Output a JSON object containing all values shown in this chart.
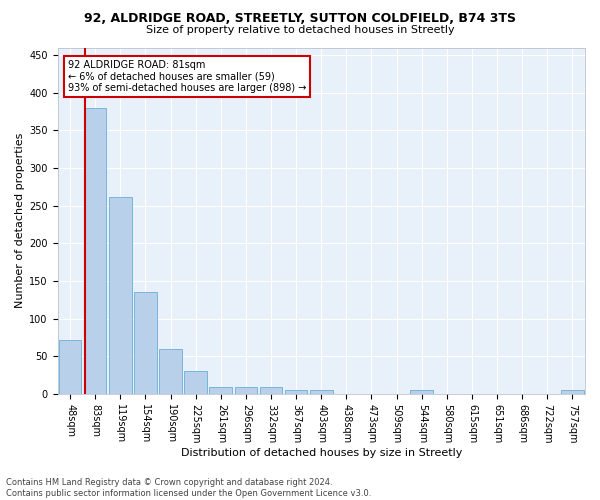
{
  "title": "92, ALDRIDGE ROAD, STREETLY, SUTTON COLDFIELD, B74 3TS",
  "subtitle": "Size of property relative to detached houses in Streetly",
  "xlabel": "Distribution of detached houses by size in Streetly",
  "ylabel": "Number of detached properties",
  "bin_labels": [
    "48sqm",
    "83sqm",
    "119sqm",
    "154sqm",
    "190sqm",
    "225sqm",
    "261sqm",
    "296sqm",
    "332sqm",
    "367sqm",
    "403sqm",
    "438sqm",
    "473sqm",
    "509sqm",
    "544sqm",
    "580sqm",
    "615sqm",
    "651sqm",
    "686sqm",
    "722sqm",
    "757sqm"
  ],
  "bar_heights": [
    72,
    380,
    261,
    136,
    60,
    31,
    10,
    10,
    10,
    5,
    5,
    0,
    0,
    0,
    5,
    0,
    0,
    0,
    0,
    0,
    5
  ],
  "bar_color": "#b8d0ea",
  "bar_edgecolor": "#6aaed6",
  "vline_color": "#cc0000",
  "annotation_text": "92 ALDRIDGE ROAD: 81sqm\n← 6% of detached houses are smaller (59)\n93% of semi-detached houses are larger (898) →",
  "annotation_box_color": "#ffffff",
  "annotation_box_edgecolor": "#cc0000",
  "ylim": [
    0,
    460
  ],
  "yticks": [
    0,
    50,
    100,
    150,
    200,
    250,
    300,
    350,
    400,
    450
  ],
  "footnote": "Contains HM Land Registry data © Crown copyright and database right 2024.\nContains public sector information licensed under the Open Government Licence v3.0.",
  "plot_bg_color": "#e8f0fa",
  "fig_bg_color": "#ffffff",
  "title_fontsize": 9,
  "subtitle_fontsize": 8,
  "ylabel_fontsize": 8,
  "xlabel_fontsize": 8,
  "tick_fontsize": 7,
  "footnote_fontsize": 6
}
